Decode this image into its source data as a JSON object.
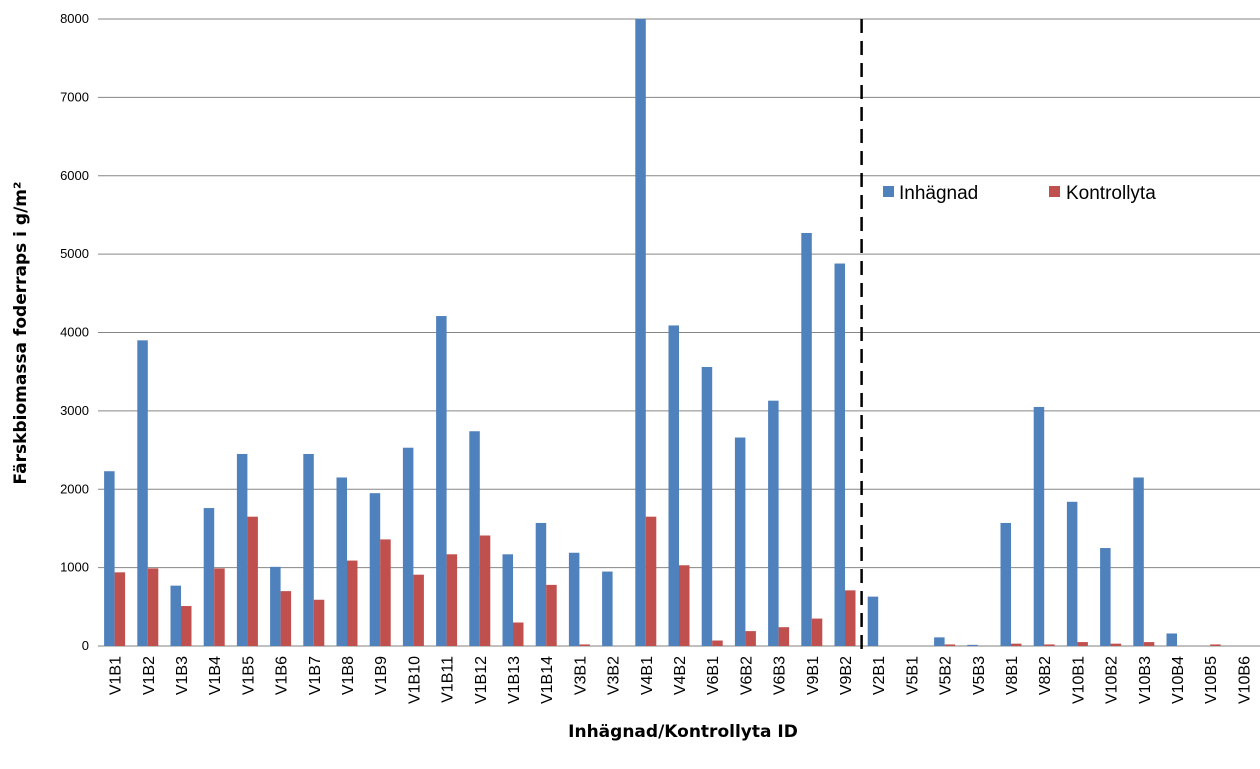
{
  "chart_data": {
    "type": "bar",
    "title": "",
    "xlabel": "Inhägnad/Kontrollyta ID",
    "ylabel": "Färskbiomassa foderraps i g/m²",
    "ylim": [
      0,
      8000
    ],
    "yticks": [
      0,
      1000,
      2000,
      3000,
      4000,
      5000,
      6000,
      7000,
      8000
    ],
    "grid": true,
    "legend_position": "upper-right",
    "categories": [
      "V1B1",
      "V1B2",
      "V1B3",
      "V1B4",
      "V1B5",
      "V1B6",
      "V1B7",
      "V1B8",
      "V1B9",
      "V1B10",
      "V1B11",
      "V1B12",
      "V1B13",
      "V1B14",
      "V3B1",
      "V3B2",
      "V4B1",
      "V4B2",
      "V6B1",
      "V6B2",
      "V6B3",
      "V9B1",
      "V9B2",
      "V2B1",
      "V5B1",
      "V5B2",
      "V5B3",
      "V8B1",
      "V8B2",
      "V10B1",
      "V10B2",
      "V10B3",
      "V10B4",
      "V10B5",
      "V10B6"
    ],
    "series": [
      {
        "name": "Inhägnad",
        "color": "#4f81bd",
        "values": [
          2230,
          3900,
          770,
          1760,
          2450,
          1010,
          2450,
          2150,
          1950,
          2530,
          4210,
          2740,
          1170,
          1570,
          1190,
          950,
          8000,
          4090,
          3560,
          2660,
          3130,
          5270,
          4880,
          630,
          0,
          110,
          15,
          1570,
          3050,
          1840,
          1250,
          2150,
          160,
          0,
          0
        ]
      },
      {
        "name": "Kontrollyta",
        "color": "#c0504d",
        "values": [
          940,
          990,
          510,
          990,
          1650,
          700,
          590,
          1090,
          1360,
          910,
          1170,
          1410,
          300,
          780,
          20,
          0,
          1650,
          1030,
          70,
          190,
          240,
          350,
          710,
          0,
          0,
          20,
          0,
          30,
          20,
          50,
          30,
          50,
          0,
          20,
          0
        ]
      }
    ],
    "annotations": [
      {
        "type": "vertical-dashed-divider",
        "between": [
          "V9B2",
          "V2B1"
        ]
      }
    ]
  }
}
